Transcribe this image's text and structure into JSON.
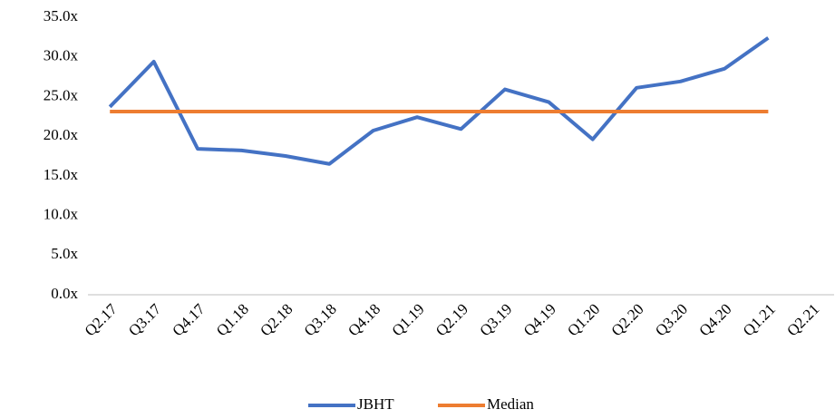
{
  "chart_data": {
    "type": "line",
    "categories": [
      "Q2.17",
      "Q3.17",
      "Q4.17",
      "Q1.18",
      "Q2.18",
      "Q3.18",
      "Q4.18",
      "Q1.19",
      "Q2.19",
      "Q3.19",
      "Q4.19",
      "Q1.20",
      "Q2.20",
      "Q3.20",
      "Q4.20",
      "Q1.21",
      "Q2.21"
    ],
    "series": [
      {
        "name": "JBHT",
        "color": "#4472c4",
        "values": [
          23.7,
          29.4,
          18.4,
          18.2,
          17.5,
          16.5,
          20.7,
          22.4,
          20.9,
          25.9,
          24.3,
          19.6,
          26.1,
          26.9,
          28.5,
          32.4,
          null
        ]
      },
      {
        "name": "Median",
        "color": "#ed7d31",
        "values": [
          23.1,
          23.1,
          23.1,
          23.1,
          23.1,
          23.1,
          23.1,
          23.1,
          23.1,
          23.1,
          23.1,
          23.1,
          23.1,
          23.1,
          23.1,
          23.1,
          null
        ]
      }
    ],
    "ylim": [
      0,
      35
    ],
    "yticks": [
      {
        "value": 0,
        "label": "0.0x"
      },
      {
        "value": 5,
        "label": "5.0x"
      },
      {
        "value": 10,
        "label": "10.0x"
      },
      {
        "value": 15,
        "label": "15.0x"
      },
      {
        "value": 20,
        "label": "20.0x"
      },
      {
        "value": 25,
        "label": "25.0x"
      },
      {
        "value": 30,
        "label": "30.0x"
      },
      {
        "value": 35,
        "label": "35.0x"
      }
    ],
    "grid": false,
    "legend": "bottom"
  }
}
